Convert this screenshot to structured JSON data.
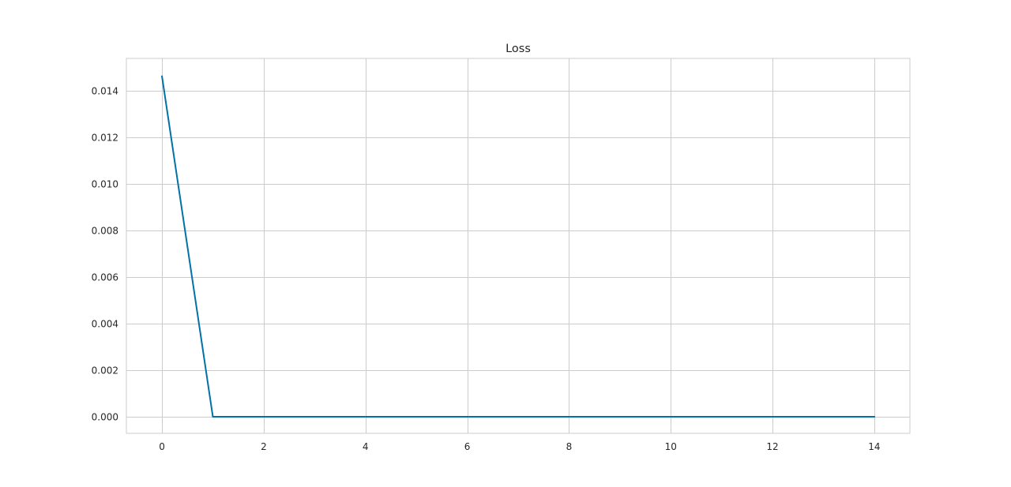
{
  "chart_data": {
    "type": "line",
    "title": "Loss",
    "xlabel": "",
    "ylabel": "",
    "x": [
      0,
      1,
      2,
      3,
      4,
      5,
      6,
      7,
      8,
      9,
      10,
      11,
      12,
      13,
      14
    ],
    "series": [
      {
        "values": [
          0.01463,
          1e-05,
          1e-05,
          1e-05,
          1e-05,
          1e-05,
          1e-05,
          1e-05,
          1e-05,
          1e-05,
          1e-05,
          1e-05,
          1e-05,
          1e-05,
          1e-05
        ],
        "color": "#0072a8"
      }
    ],
    "xlim": [
      -0.7,
      14.7
    ],
    "ylim": [
      -0.0007,
      0.0154
    ],
    "xticks": [
      0,
      2,
      4,
      6,
      8,
      10,
      12,
      14
    ],
    "xtick_labels": [
      "0",
      "2",
      "4",
      "6",
      "8",
      "10",
      "12",
      "14"
    ],
    "yticks": [
      0.0,
      0.002,
      0.004,
      0.006,
      0.008,
      0.01,
      0.012,
      0.014
    ],
    "ytick_labels": [
      "0.000",
      "0.002",
      "0.004",
      "0.006",
      "0.008",
      "0.010",
      "0.012",
      "0.014"
    ],
    "grid": true,
    "legend": false,
    "colors": {
      "grid": "#cccccc",
      "frame": "#cccccc",
      "text": "#262626",
      "background": "#ffffff"
    }
  }
}
